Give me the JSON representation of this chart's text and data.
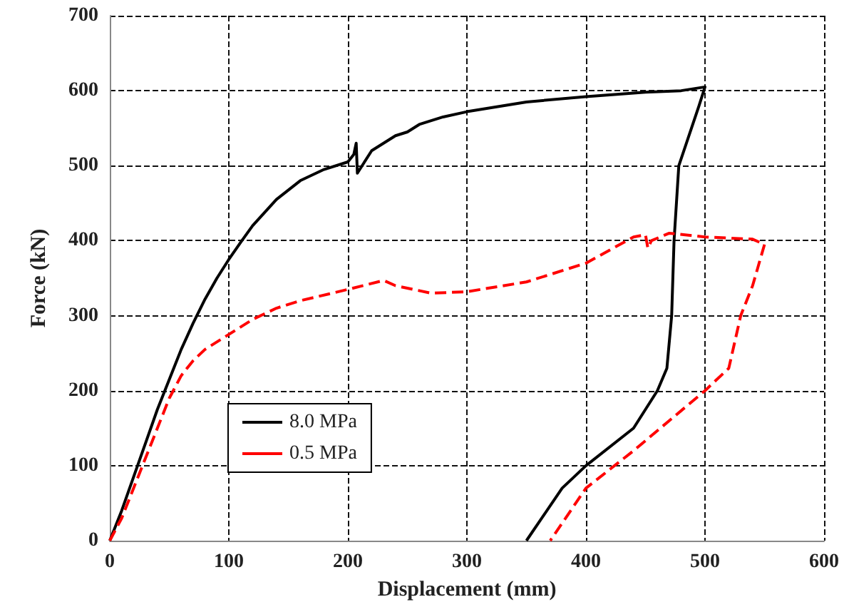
{
  "chart_data": {
    "type": "line",
    "xlabel": "Displacement (mm)",
    "ylabel": "Force (kN)",
    "xlim": [
      0,
      600
    ],
    "xticks": [
      0,
      100,
      200,
      300,
      400,
      500,
      600
    ],
    "ylim": [
      0,
      700
    ],
    "yticks": [
      0,
      100,
      200,
      300,
      400,
      500,
      600,
      700
    ],
    "grid": true,
    "legend": "bottom left",
    "marker": "none",
    "series": [
      {
        "name": "8.0 MPa",
        "color": "#000000",
        "line_style": "solid",
        "x": [
          0,
          10,
          20,
          30,
          40,
          50,
          60,
          70,
          80,
          90,
          100,
          110,
          120,
          140,
          160,
          180,
          200,
          205,
          207,
          208,
          212,
          220,
          240,
          250,
          260,
          280,
          300,
          350,
          400,
          450,
          480,
          500,
          495,
          478,
          474,
          472,
          468,
          460,
          440,
          400,
          380,
          350
        ],
        "values": [
          0,
          40,
          85,
          130,
          175,
          215,
          255,
          290,
          322,
          350,
          375,
          398,
          420,
          455,
          480,
          495,
          505,
          515,
          530,
          490,
          500,
          520,
          540,
          545,
          555,
          565,
          572,
          585,
          592,
          598,
          600,
          605,
          580,
          500,
          400,
          300,
          230,
          200,
          150,
          100,
          70,
          0
        ]
      },
      {
        "name": "0.5 MPa",
        "color": "#ff0000",
        "line_style": "dashed",
        "x": [
          0,
          10,
          20,
          30,
          40,
          50,
          60,
          70,
          80,
          100,
          120,
          140,
          160,
          200,
          230,
          240,
          270,
          300,
          350,
          400,
          440,
          450,
          452,
          455,
          470,
          500,
          540,
          550,
          540,
          530,
          520,
          500,
          470,
          440,
          400,
          370
        ],
        "values": [
          0,
          30,
          70,
          110,
          150,
          190,
          220,
          240,
          255,
          275,
          295,
          310,
          320,
          335,
          347,
          340,
          330,
          332,
          345,
          370,
          405,
          408,
          390,
          400,
          410,
          405,
          402,
          395,
          340,
          300,
          230,
          200,
          160,
          120,
          70,
          0
        ]
      }
    ]
  }
}
